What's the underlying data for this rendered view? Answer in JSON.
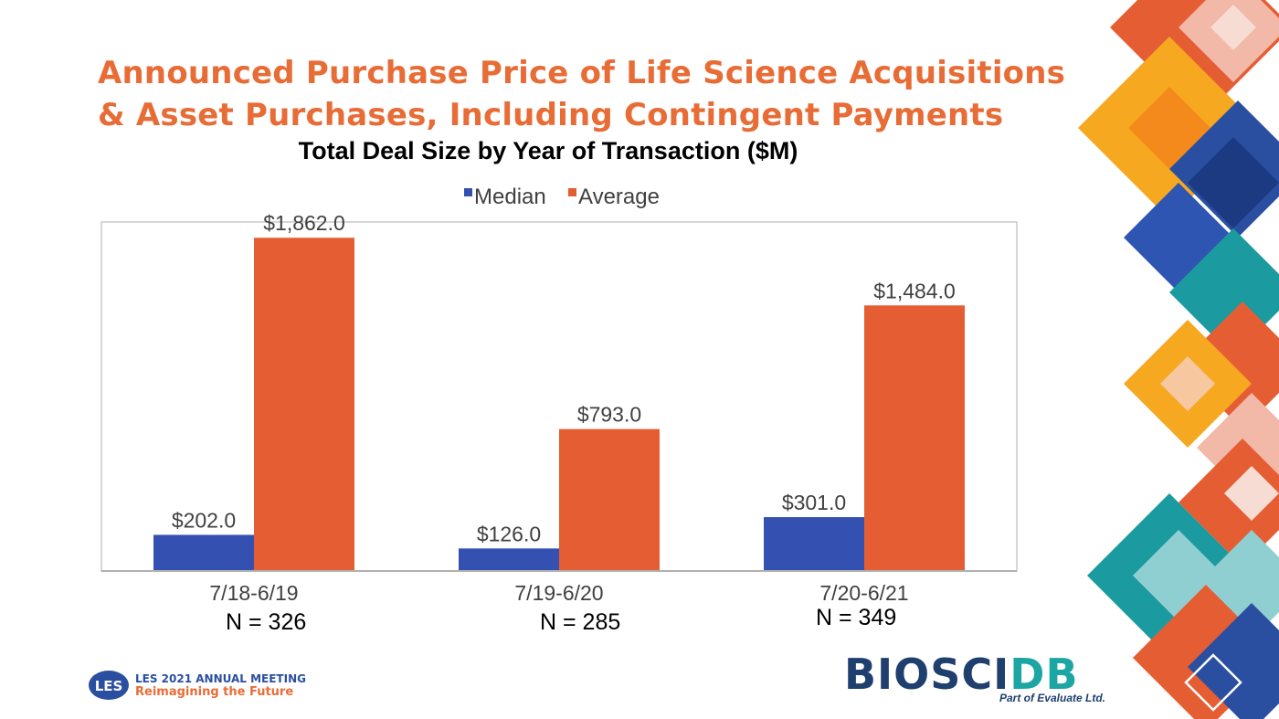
{
  "title": {
    "line1": "Announced Purchase Price of Life Science Acquisitions",
    "line2": "& Asset Purchases, Including Contingent Payments"
  },
  "subtitle": "Total Deal Size by Year of Transaction ($M)",
  "colors": {
    "median": "#3451b2",
    "average": "#e55d33",
    "title": "#e86c36"
  },
  "chart_data": {
    "type": "bar",
    "title": "Total Deal Size by Year of Transaction ($M)",
    "categories": [
      "7/18-6/19",
      "7/19-6/20",
      "7/20-6/21"
    ],
    "series": [
      {
        "name": "Median",
        "values": [
          202.0,
          126.0,
          301.0
        ],
        "labels": [
          "$202.0",
          "$126.0",
          "$301.0"
        ]
      },
      {
        "name": "Average",
        "values": [
          1862.0,
          793.0,
          1484.0
        ],
        "labels": [
          "$1,862.0",
          "$793.0",
          "$1,484.0"
        ]
      }
    ],
    "ylim": [
      0,
      1950
    ],
    "xlabel": "",
    "ylabel": "",
    "legend_position": "top-center",
    "grid": false
  },
  "n_labels": [
    "N = 326",
    "N = 285",
    "N = 349"
  ],
  "footer": {
    "les_badge": "LES",
    "les_line1": "LES 2021 ANNUAL MEETING",
    "les_line2": "Reimagining the Future",
    "bio_part1": "BIO",
    "bio_part2": "SCI",
    "bio_part3": "DB",
    "bio_sub": "Part of Evaluate Ltd."
  }
}
